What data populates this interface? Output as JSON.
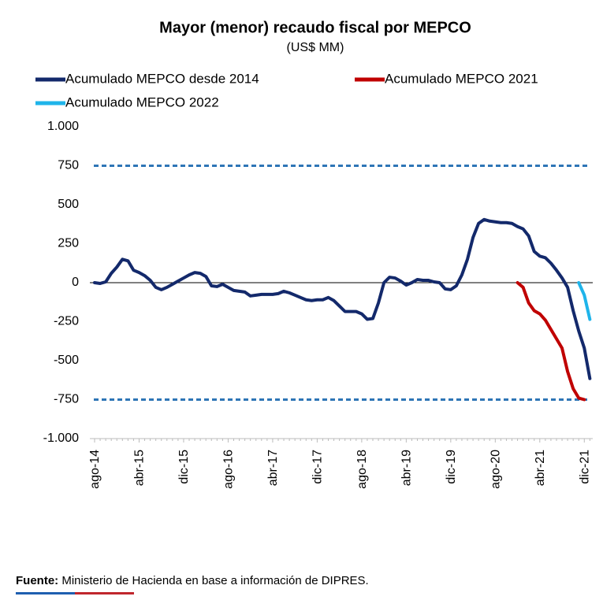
{
  "chart_data": {
    "type": "line",
    "title": "Mayor (menor) recaudo fiscal por MEPCO",
    "subtitle": "(US$ MM)",
    "source_label": "Fuente:",
    "source": "Ministerio de Hacienda en base a información de DIPRES.",
    "categories": [
      "ago-14",
      null,
      null,
      null,
      null,
      null,
      null,
      null,
      "abr-15",
      null,
      null,
      null,
      null,
      null,
      null,
      null,
      "dic-15",
      null,
      null,
      null,
      null,
      null,
      null,
      null,
      "ago-16",
      null,
      null,
      null,
      null,
      null,
      null,
      null,
      "abr-17",
      null,
      null,
      null,
      null,
      null,
      null,
      null,
      "dic-17",
      null,
      null,
      null,
      null,
      null,
      null,
      null,
      "ago-18",
      null,
      null,
      null,
      null,
      null,
      null,
      null,
      "abr-19",
      null,
      null,
      null,
      null,
      null,
      null,
      null,
      "dic-19",
      null,
      null,
      null,
      null,
      null,
      null,
      null,
      "ago-20",
      null,
      null,
      null,
      null,
      null,
      null,
      null,
      "abr-21",
      null,
      null,
      null,
      null,
      null,
      null,
      null,
      "dic-21",
      null
    ],
    "series": [
      {
        "name": "Acumulado MEPCO desde 2014",
        "color": "#13296b",
        "values": [
          0,
          -5,
          5,
          60,
          100,
          150,
          140,
          80,
          65,
          45,
          15,
          -30,
          -45,
          -30,
          -10,
          10,
          30,
          50,
          65,
          60,
          40,
          -20,
          -25,
          -10,
          -30,
          -50,
          -55,
          -60,
          -85,
          -80,
          -75,
          -75,
          -75,
          -70,
          -55,
          -65,
          -80,
          -95,
          -110,
          -115,
          -110,
          -110,
          -95,
          -115,
          -150,
          -185,
          -185,
          -185,
          -200,
          -235,
          -230,
          -130,
          0,
          35,
          30,
          10,
          -15,
          0,
          20,
          15,
          15,
          5,
          0,
          -40,
          -45,
          -20,
          50,
          150,
          290,
          380,
          405,
          395,
          390,
          385,
          385,
          380,
          360,
          345,
          300,
          200,
          170,
          160,
          125,
          80,
          30,
          -30,
          -180,
          -310,
          -420,
          -615
        ]
      },
      {
        "name": "Acumulado MEPCO 2021",
        "color": "#c00000",
        "values": [
          null,
          null,
          null,
          null,
          null,
          null,
          null,
          null,
          null,
          null,
          null,
          null,
          null,
          null,
          null,
          null,
          null,
          null,
          null,
          null,
          null,
          null,
          null,
          null,
          null,
          null,
          null,
          null,
          null,
          null,
          null,
          null,
          null,
          null,
          null,
          null,
          null,
          null,
          null,
          null,
          null,
          null,
          null,
          null,
          null,
          null,
          null,
          null,
          null,
          null,
          null,
          null,
          null,
          null,
          null,
          null,
          null,
          null,
          null,
          null,
          null,
          null,
          null,
          null,
          null,
          null,
          null,
          null,
          null,
          null,
          null,
          null,
          null,
          null,
          null,
          null,
          0,
          -30,
          -130,
          -180,
          -200,
          -240,
          -300,
          -360,
          -420,
          -570,
          -680,
          -740,
          -750,
          null
        ]
      },
      {
        "name": "Acumulado MEPCO 2022",
        "color": "#1fb4ea",
        "values": [
          null,
          null,
          null,
          null,
          null,
          null,
          null,
          null,
          null,
          null,
          null,
          null,
          null,
          null,
          null,
          null,
          null,
          null,
          null,
          null,
          null,
          null,
          null,
          null,
          null,
          null,
          null,
          null,
          null,
          null,
          null,
          null,
          null,
          null,
          null,
          null,
          null,
          null,
          null,
          null,
          null,
          null,
          null,
          null,
          null,
          null,
          null,
          null,
          null,
          null,
          null,
          null,
          null,
          null,
          null,
          null,
          null,
          null,
          null,
          null,
          null,
          null,
          null,
          null,
          null,
          null,
          null,
          null,
          null,
          null,
          null,
          null,
          null,
          null,
          null,
          null,
          null,
          null,
          null,
          null,
          null,
          null,
          null,
          null,
          null,
          null,
          null,
          0,
          -80,
          -235
        ]
      }
    ],
    "reference_lines": [
      750,
      -750
    ],
    "reference_color": "#2e75b6",
    "ylim": [
      -1000,
      1000
    ],
    "yticks": [
      {
        "value": -1000,
        "label": "-1.000"
      },
      -750,
      -500,
      -250,
      0,
      250,
      500,
      750,
      {
        "value": 1000,
        "label": "1.000"
      }
    ]
  }
}
